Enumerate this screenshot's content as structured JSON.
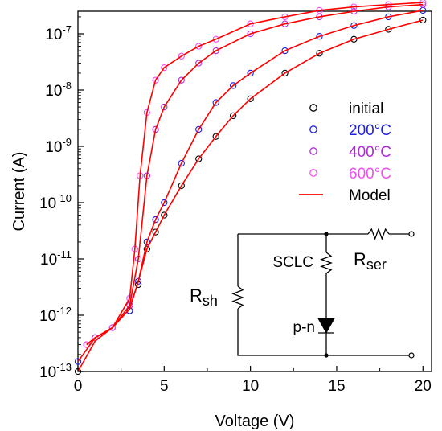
{
  "chart_data": {
    "type": "scatter",
    "title": "",
    "xlabel": "Voltage (V)",
    "ylabel": "Current (A)",
    "xlim": [
      0,
      20.5
    ],
    "ylim_exponent": [
      -13,
      -6.6
    ],
    "y_scale": "log",
    "x_ticks": [
      "0",
      "5",
      "10",
      "15",
      "20"
    ],
    "y_ticks": [
      {
        "base": "10",
        "exp": "-13"
      },
      {
        "base": "10",
        "exp": "-12"
      },
      {
        "base": "10",
        "exp": "-11"
      },
      {
        "base": "10",
        "exp": "-10"
      },
      {
        "base": "10",
        "exp": "-9"
      },
      {
        "base": "10",
        "exp": "-8"
      },
      {
        "base": "10",
        "exp": "-7"
      }
    ],
    "legend": {
      "position": "right",
      "entries": [
        {
          "label": "initial",
          "color": "#000000",
          "kind": "marker"
        },
        {
          "label": "200°C",
          "color": "#1e1ee6",
          "kind": "marker"
        },
        {
          "label": "400°C",
          "color": "#b428dc",
          "kind": "marker"
        },
        {
          "label": "600°C",
          "color": "#f050f0",
          "kind": "marker"
        },
        {
          "label": "Model",
          "color": "#ff0000",
          "kind": "line"
        }
      ]
    },
    "series": [
      {
        "name": "initial",
        "color": "#000000",
        "marker": "open-circle",
        "x": [
          0,
          1,
          2,
          3,
          3.5,
          4,
          4.5,
          5,
          6,
          7,
          8,
          9,
          10,
          12,
          14,
          16,
          18,
          20
        ],
        "y": [
          1e-13,
          4e-13,
          6e-13,
          1.2e-12,
          3.5e-12,
          1.5e-11,
          3e-11,
          6e-11,
          2e-10,
          6e-10,
          1.5e-09,
          3.5e-09,
          7e-09,
          2e-08,
          4.5e-08,
          8e-08,
          1.2e-07,
          1.75e-07
        ]
      },
      {
        "name": "200°C",
        "color": "#1e1ee6",
        "marker": "open-circle",
        "x": [
          0,
          1,
          2,
          3,
          3.5,
          4,
          4.5,
          5,
          6,
          7,
          8,
          9,
          10,
          12,
          14,
          16,
          18,
          20
        ],
        "y": [
          1.5e-13,
          4e-13,
          6e-13,
          1.2e-12,
          4e-12,
          2e-11,
          5e-11,
          1e-10,
          5e-10,
          2e-09,
          6e-09,
          1.2e-08,
          2e-08,
          5e-08,
          9e-08,
          1.4e-07,
          2e-07,
          2.6e-07
        ]
      },
      {
        "name": "400°C",
        "color": "#b428dc",
        "marker": "open-circle",
        "x": [
          0.5,
          1,
          2,
          3,
          3.5,
          4,
          4.5,
          5,
          6,
          7,
          8,
          10,
          12,
          14,
          16,
          18,
          20
        ],
        "y": [
          3e-13,
          4e-13,
          6e-13,
          1.5e-12,
          1e-11,
          3e-10,
          2e-09,
          5e-09,
          1.5e-08,
          3e-08,
          5e-08,
          1e-07,
          1.5e-07,
          2e-07,
          2.5e-07,
          3e-07,
          3.3e-07
        ]
      },
      {
        "name": "600°C",
        "color": "#f050f0",
        "marker": "open-circle",
        "x": [
          0.5,
          1,
          2,
          3,
          3.3,
          3.6,
          4,
          4.5,
          5,
          6,
          7,
          8,
          10,
          12,
          14,
          16,
          18,
          20
        ],
        "y": [
          3e-13,
          4e-13,
          6e-13,
          2e-12,
          1.5e-11,
          3e-10,
          4e-09,
          1.5e-08,
          2.5e-08,
          4e-08,
          6e-08,
          8e-08,
          1.5e-07,
          2e-07,
          2.6e-07,
          3e-07,
          3.3e-07,
          3.6e-07
        ]
      },
      {
        "name": "Model",
        "color": "#ff0000",
        "marker": "line",
        "curves": [
          {
            "x": [
              0,
              1,
              2,
              3,
              3.5,
              4,
              4.5,
              5,
              6,
              7,
              8,
              9,
              10,
              12,
              14,
              16,
              18,
              20
            ],
            "y": [
              1e-13,
              3.5e-13,
              6e-13,
              1.3e-12,
              4e-12,
              1.5e-11,
              3e-11,
              6e-11,
              2e-10,
              6e-10,
              1.5e-09,
              3.5e-09,
              7e-09,
              2e-08,
              4.5e-08,
              8e-08,
              1.2e-07,
              1.75e-07
            ]
          },
          {
            "x": [
              0,
              1,
              2,
              3,
              3.5,
              4,
              4.5,
              5,
              6,
              7,
              8,
              9,
              10,
              12,
              14,
              16,
              18,
              20
            ],
            "y": [
              1.5e-13,
              4e-13,
              6e-13,
              1.3e-12,
              4e-12,
              2e-11,
              5e-11,
              1e-10,
              5e-10,
              2e-09,
              6e-09,
              1.2e-08,
              2e-08,
              5e-08,
              9e-08,
              1.4e-07,
              2e-07,
              2.6e-07
            ]
          },
          {
            "x": [
              0.5,
              1,
              2,
              3,
              3.5,
              4,
              4.5,
              5,
              6,
              7,
              8,
              10,
              12,
              14,
              16,
              18,
              20
            ],
            "y": [
              3e-13,
              4e-13,
              6e-13,
              1.5e-12,
              1e-11,
              3e-10,
              2e-09,
              5e-09,
              1.5e-08,
              3e-08,
              5e-08,
              1e-07,
              1.5e-07,
              2e-07,
              2.5e-07,
              3e-07,
              3.3e-07
            ]
          },
          {
            "x": [
              0.5,
              1,
              2,
              3,
              3.3,
              3.6,
              4,
              4.5,
              5,
              6,
              7,
              8,
              10,
              12,
              14,
              16,
              18,
              20
            ],
            "y": [
              3e-13,
              4e-13,
              6e-13,
              2e-12,
              1.5e-11,
              3e-10,
              4e-09,
              1.5e-08,
              2.5e-08,
              4e-08,
              6e-08,
              8e-08,
              1.5e-07,
              2e-07,
              2.6e-07,
              3e-07,
              3.3e-07,
              3.6e-07
            ]
          }
        ]
      }
    ],
    "circuit": {
      "labels": {
        "sclc": "SCLC",
        "pn": "p-n",
        "rsh_main": "R",
        "rsh_sub": "sh",
        "rser_main": "R",
        "rser_sub": "ser"
      },
      "colors": {
        "wire": "#000000"
      }
    }
  }
}
